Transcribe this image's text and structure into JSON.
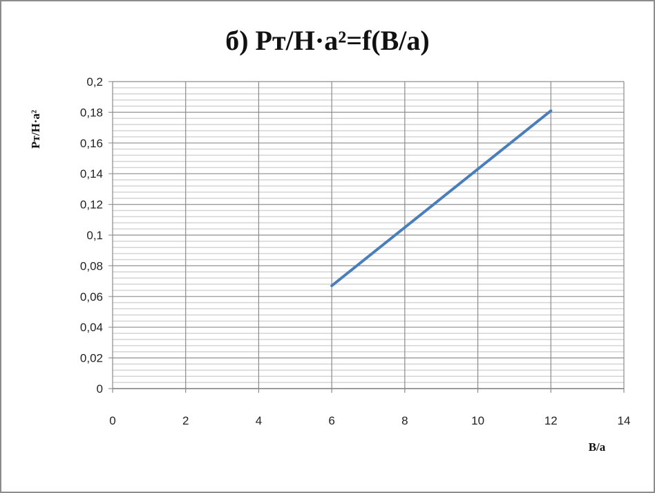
{
  "chart_data": {
    "type": "line",
    "title": "б) Рт/Н·a²=f(B/a)",
    "xlabel": "B/a",
    "ylabel": "Рт/Н·a²",
    "xlim": [
      0,
      14
    ],
    "ylim": [
      0,
      0.2
    ],
    "x_ticks": [
      "0",
      "2",
      "4",
      "6",
      "8",
      "10",
      "12",
      "14"
    ],
    "y_ticks": [
      "0",
      "0,02",
      "0,04",
      "0,06",
      "0,08",
      "0,1",
      "0,12",
      "0,14",
      "0,16",
      "0,18",
      "0,2"
    ],
    "grid": {
      "major": true,
      "minor_horizontal": true
    },
    "legend": "none",
    "series": [
      {
        "x": [
          6,
          8,
          10,
          12
        ],
        "values": [
          0.067,
          0.105,
          0.143,
          0.181
        ],
        "color": "#4a7ebb"
      }
    ]
  }
}
